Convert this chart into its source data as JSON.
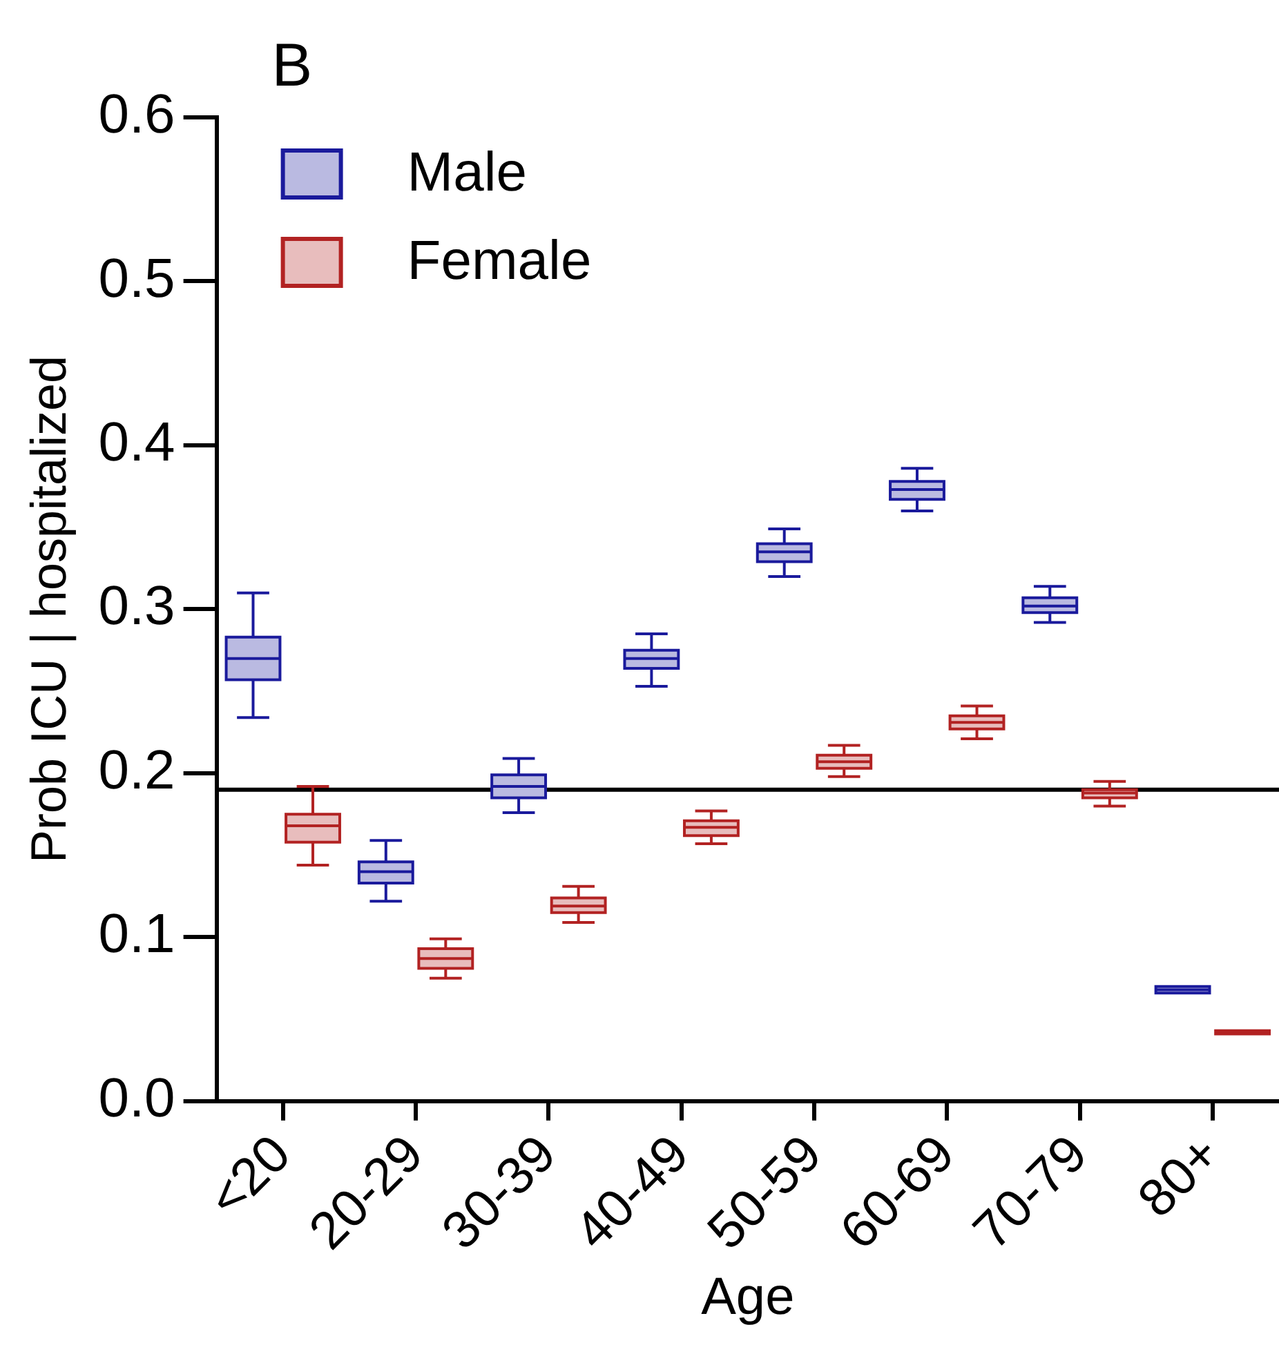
{
  "chart_data": {
    "type": "box",
    "title": "B",
    "xlabel": "Age",
    "ylabel": "Prob ICU | hospitalized",
    "categories": [
      "<20",
      "20-29",
      "30-39",
      "40-49",
      "50-59",
      "60-69",
      "70-79",
      "80+"
    ],
    "ylim": [
      0,
      0.6
    ],
    "yticks": [
      {
        "value": 0,
        "label": "0.0"
      },
      0.1,
      0.2,
      0.3,
      0.4,
      0.5,
      0.6
    ],
    "grid": false,
    "legend": "top left",
    "ref_lines": [
      {
        "axis": "y",
        "value": 0.19,
        "color": "#000000"
      }
    ],
    "series": [
      {
        "name": "Male",
        "color": "#1a1a9c",
        "boxes": [
          {
            "low": 0.234,
            "q1": 0.257,
            "median": 0.27,
            "q3": 0.283,
            "high": 0.31
          },
          {
            "low": 0.122,
            "q1": 0.133,
            "median": 0.14,
            "q3": 0.146,
            "high": 0.159
          },
          {
            "low": 0.176,
            "q1": 0.185,
            "median": 0.192,
            "q3": 0.199,
            "high": 0.209
          },
          {
            "low": 0.253,
            "q1": 0.264,
            "median": 0.27,
            "q3": 0.275,
            "high": 0.285
          },
          {
            "low": 0.32,
            "q1": 0.329,
            "median": 0.335,
            "q3": 0.34,
            "high": 0.349
          },
          {
            "low": 0.36,
            "q1": 0.367,
            "median": 0.373,
            "q3": 0.378,
            "high": 0.386
          },
          {
            "low": 0.292,
            "q1": 0.298,
            "median": 0.302,
            "q3": 0.307,
            "high": 0.314
          },
          {
            "low": 0.066,
            "q1": 0.066,
            "median": 0.068,
            "q3": 0.07,
            "high": 0.07
          }
        ]
      },
      {
        "name": "Female",
        "color": "#b22222",
        "boxes": [
          {
            "low": 0.144,
            "q1": 0.158,
            "median": 0.168,
            "q3": 0.175,
            "high": 0.192
          },
          {
            "low": 0.075,
            "q1": 0.081,
            "median": 0.087,
            "q3": 0.093,
            "high": 0.099
          },
          {
            "low": 0.109,
            "q1": 0.115,
            "median": 0.119,
            "q3": 0.124,
            "high": 0.131
          },
          {
            "low": 0.157,
            "q1": 0.162,
            "median": 0.167,
            "q3": 0.171,
            "high": 0.177
          },
          {
            "low": 0.198,
            "q1": 0.203,
            "median": 0.207,
            "q3": 0.211,
            "high": 0.217
          },
          {
            "low": 0.221,
            "q1": 0.227,
            "median": 0.231,
            "q3": 0.235,
            "high": 0.241
          },
          {
            "low": 0.18,
            "q1": 0.185,
            "median": 0.188,
            "q3": 0.19,
            "high": 0.195
          },
          {
            "low": 0.041,
            "q1": 0.041,
            "median": 0.042,
            "q3": 0.043,
            "high": 0.043
          }
        ]
      }
    ]
  }
}
